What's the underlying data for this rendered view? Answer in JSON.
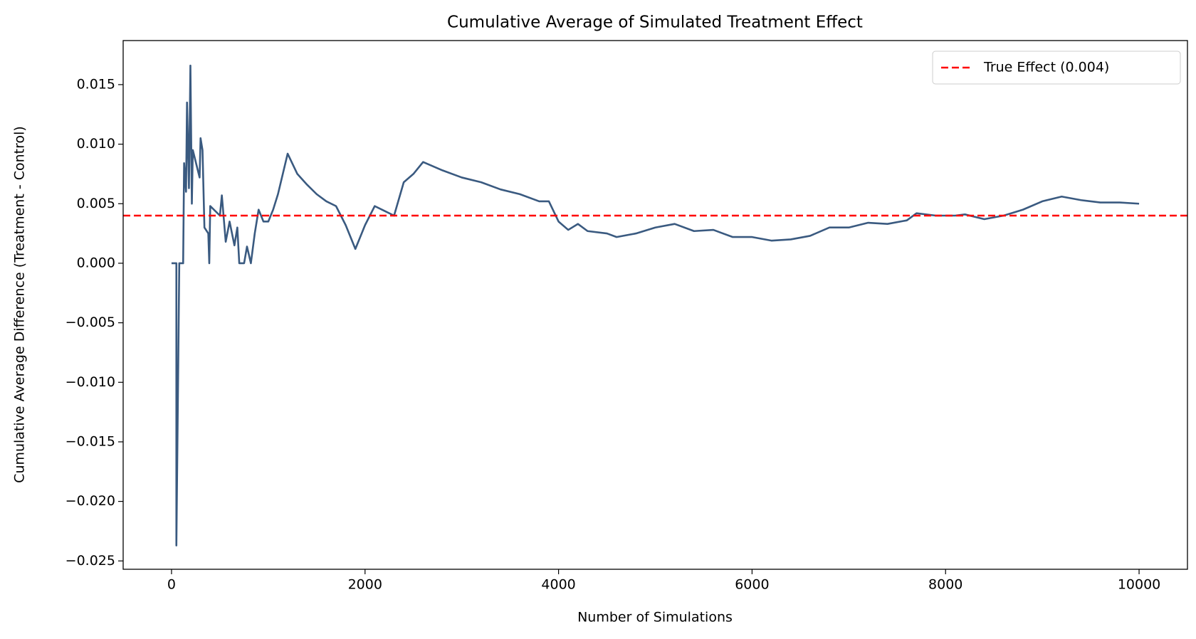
{
  "chart_data": {
    "type": "line",
    "title": "Cumulative Average of Simulated Treatment Effect",
    "x_label": "Number of Simulations",
    "y_label": "Cumulative Average Difference (Treatment - Control)",
    "xlim": [
      -500,
      10500
    ],
    "ylim": [
      -0.0257,
      0.0187
    ],
    "xticks": [
      0,
      2000,
      4000,
      6000,
      8000,
      10000
    ],
    "yticks": [
      {
        "value": -0.025,
        "label": "−0.025"
      },
      {
        "value": -0.02,
        "label": "−0.020"
      },
      {
        "value": -0.015,
        "label": "−0.015"
      },
      {
        "value": -0.01,
        "label": "−0.010"
      },
      {
        "value": -0.005,
        "label": "−0.005"
      },
      {
        "value": 0,
        "label": "0.000"
      },
      {
        "value": 0.005,
        "label": "0.005"
      },
      {
        "value": 0.01,
        "label": "0.010"
      },
      {
        "value": 0.015,
        "label": "0.015"
      }
    ],
    "legend_position": "upper right",
    "hline": {
      "name": "True Effect (0.004)",
      "value": 0.004,
      "color": "#ff0000"
    },
    "series": [
      {
        "color": "#3a5a80",
        "x": [
          0,
          50,
          50,
          80,
          120,
          130,
          150,
          160,
          180,
          195,
          210,
          220,
          290,
          300,
          320,
          340,
          380,
          390,
          400,
          500,
          520,
          560,
          600,
          650,
          680,
          700,
          750,
          780,
          820,
          860,
          900,
          950,
          1000,
          1050,
          1100,
          1150,
          1200,
          1300,
          1400,
          1500,
          1600,
          1700,
          1800,
          1900,
          2000,
          2100,
          2200,
          2300,
          2400,
          2500,
          2600,
          2800,
          3000,
          3200,
          3400,
          3600,
          3800,
          3900,
          4000,
          4100,
          4200,
          4300,
          4500,
          4600,
          4800,
          5000,
          5200,
          5400,
          5600,
          5800,
          6000,
          6200,
          6400,
          6600,
          6800,
          7000,
          7200,
          7400,
          7600,
          7700,
          7900,
          8100,
          8200,
          8400,
          8600,
          8800,
          9000,
          9200,
          9400,
          9600,
          9800,
          10000
        ],
        "values": [
          0.0,
          0.0,
          -0.0237,
          0.0,
          0.0,
          0.0084,
          0.006,
          0.0135,
          0.0063,
          0.0166,
          0.005,
          0.0095,
          0.0072,
          0.0105,
          0.0095,
          0.003,
          0.0025,
          0.0,
          0.0048,
          0.004,
          0.0057,
          0.0018,
          0.0035,
          0.0015,
          0.003,
          0.0,
          0.0,
          0.0014,
          0.0,
          0.0025,
          0.0045,
          0.0035,
          0.0035,
          0.0045,
          0.0058,
          0.0075,
          0.0092,
          0.0075,
          0.0066,
          0.0058,
          0.0052,
          0.0048,
          0.0032,
          0.0012,
          0.0032,
          0.0048,
          0.0044,
          0.004,
          0.0068,
          0.0075,
          0.0085,
          0.0078,
          0.0072,
          0.0068,
          0.0062,
          0.0058,
          0.0052,
          0.0052,
          0.0035,
          0.0028,
          0.0033,
          0.0027,
          0.0025,
          0.0022,
          0.0025,
          0.003,
          0.0033,
          0.0027,
          0.0028,
          0.0022,
          0.0022,
          0.0019,
          0.002,
          0.0023,
          0.003,
          0.003,
          0.0034,
          0.0033,
          0.0036,
          0.0042,
          0.004,
          0.004,
          0.0041,
          0.0037,
          0.004,
          0.0045,
          0.0052,
          0.0056,
          0.0053,
          0.0051,
          0.0051,
          0.005
        ]
      }
    ]
  }
}
